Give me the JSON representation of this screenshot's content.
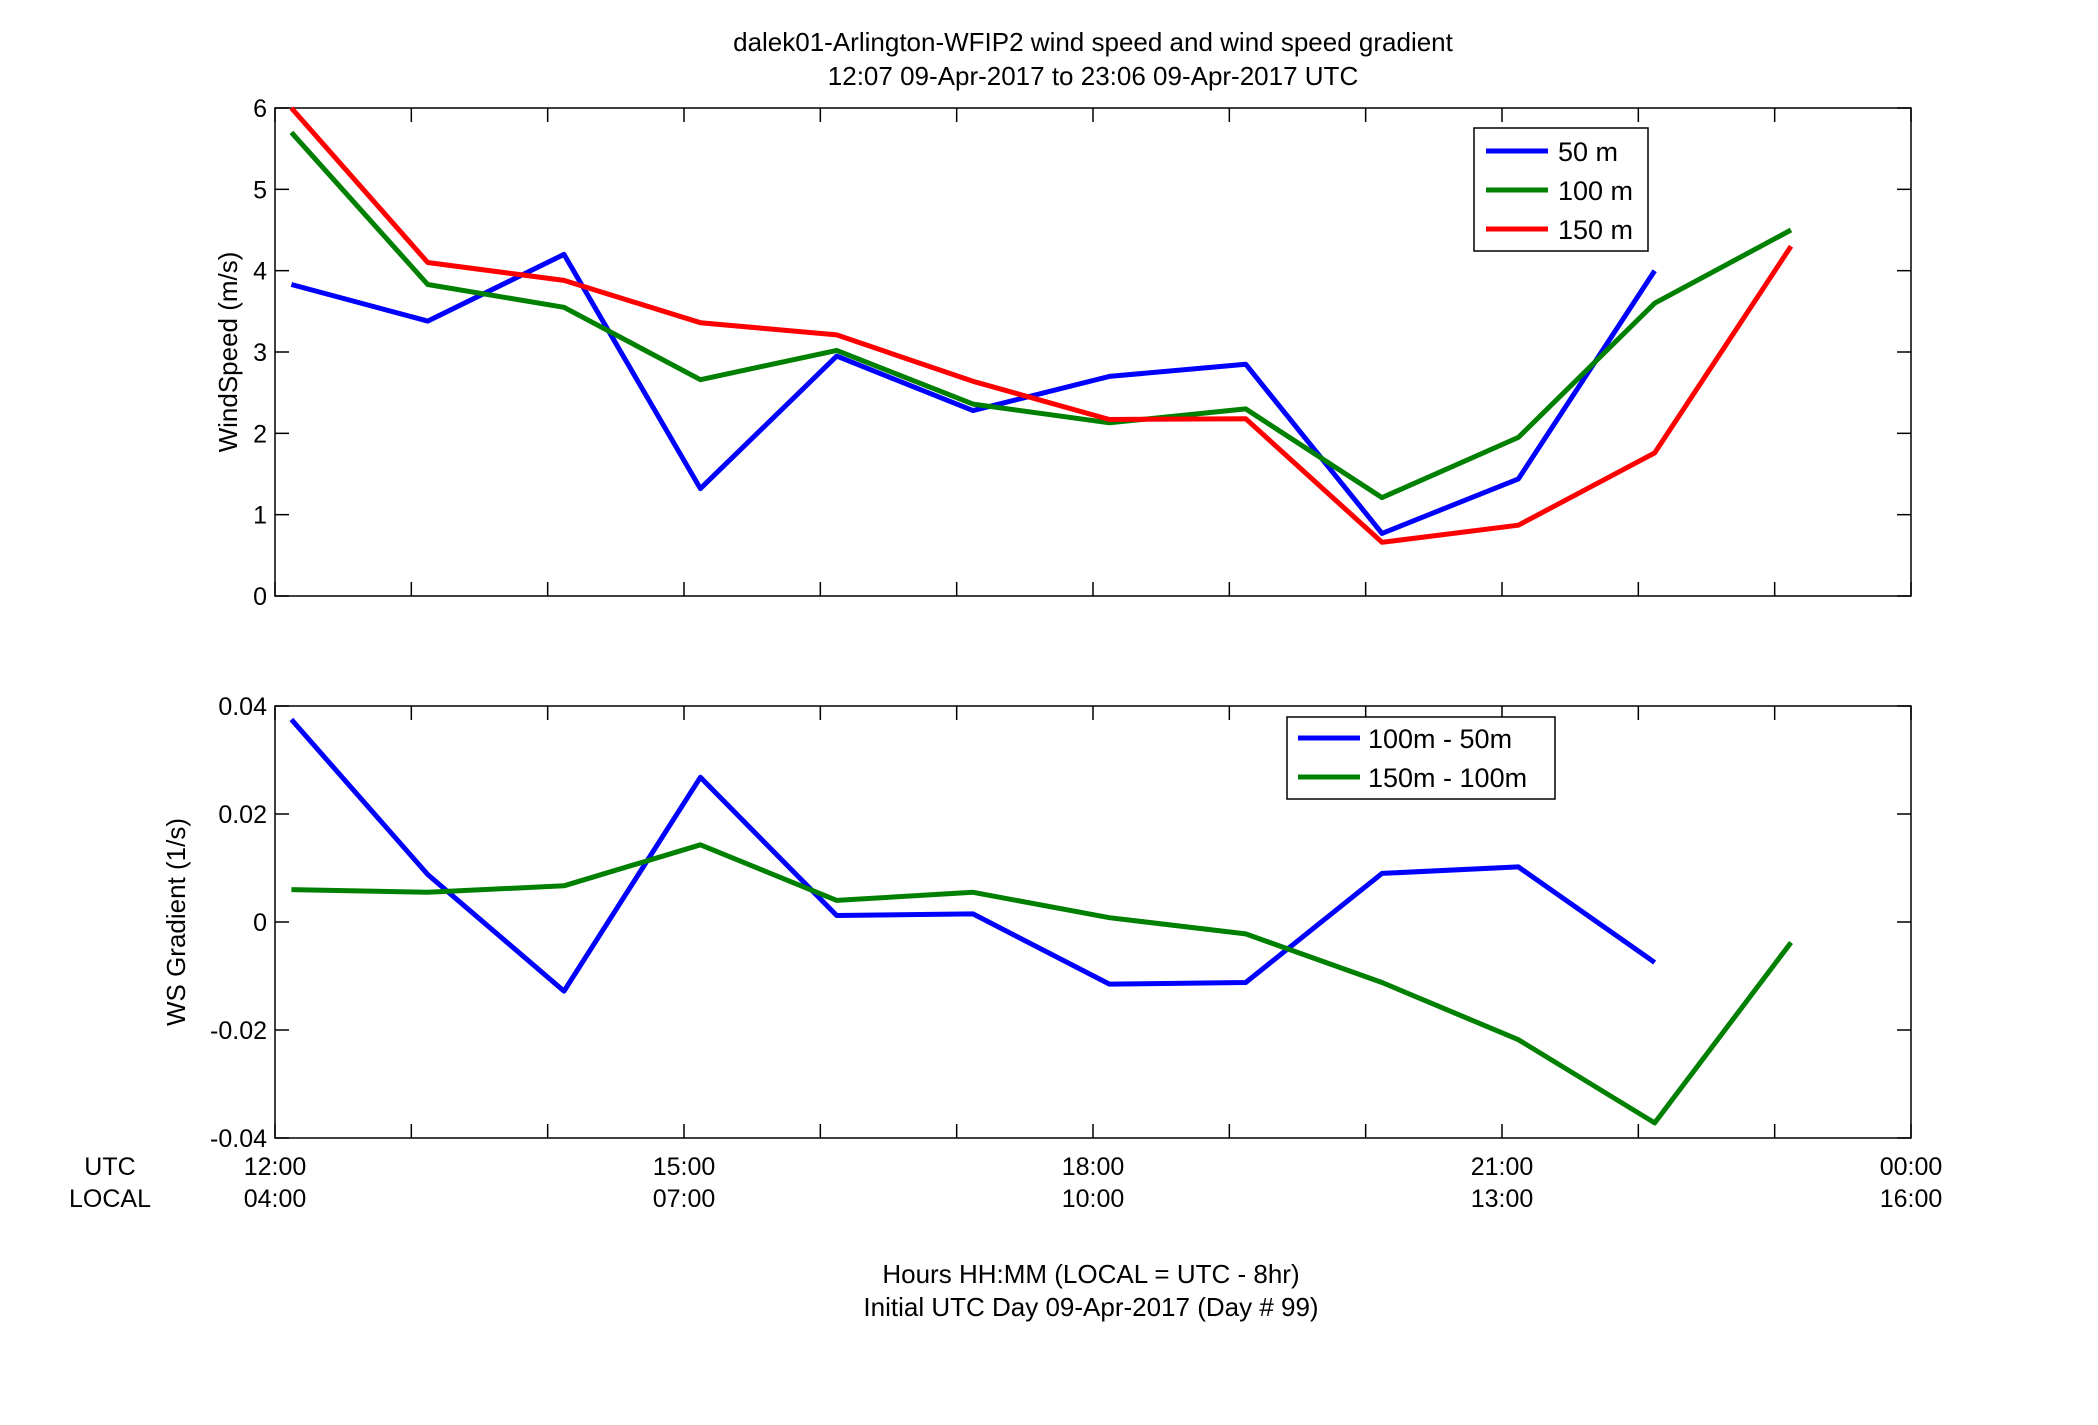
{
  "title": {
    "line1": "dalek01-Arlington-WFIP2  wind speed and wind speed gradient",
    "line2": "12:07 09-Apr-2017 to 23:06 09-Apr-2017  UTC"
  },
  "xaxis": {
    "row_label_utc": "UTC",
    "row_label_local": "LOCAL",
    "utc_ticks": [
      "12:00",
      "15:00",
      "18:00",
      "21:00",
      "00:00"
    ],
    "local_ticks": [
      "04:00",
      "07:00",
      "10:00",
      "13:00",
      "16:00"
    ],
    "xlabel_line1": "Hours HH:MM  (LOCAL = UTC - 8hr)",
    "xlabel_line2": "Initial UTC Day 09-Apr-2017 (Day # 99)"
  },
  "colors": {
    "blue": "#0000ff",
    "green": "#008000",
    "red": "#ff0000"
  },
  "chart_data": [
    {
      "type": "line",
      "ylabel": "WindSpeed (m/s)",
      "ylim": [
        0,
        6
      ],
      "yticks": [
        "0",
        "1",
        "2",
        "3",
        "4",
        "5",
        "6"
      ],
      "xlim_hours_utc": [
        12,
        24
      ],
      "grid": false,
      "legend_position": "top-right",
      "x_hours_utc": [
        12.12,
        13.12,
        14.12,
        15.12,
        16.12,
        17.12,
        18.12,
        19.12,
        20.12,
        21.12,
        22.12,
        23.12
      ],
      "series": [
        {
          "name": "50 m",
          "color": "#0000ff",
          "values": [
            3.83,
            3.38,
            4.2,
            1.32,
            2.95,
            2.28,
            2.7,
            2.85,
            0.77,
            1.44,
            4.0,
            null
          ]
        },
        {
          "name": "100 m",
          "color": "#008000",
          "values": [
            5.7,
            3.83,
            3.55,
            2.66,
            3.02,
            2.36,
            2.13,
            2.3,
            1.21,
            1.95,
            3.6,
            4.5
          ]
        },
        {
          "name": "150 m",
          "color": "#ff0000",
          "values": [
            6.0,
            4.1,
            3.88,
            3.36,
            3.21,
            2.64,
            2.17,
            2.18,
            0.66,
            0.87,
            1.76,
            4.3
          ]
        }
      ]
    },
    {
      "type": "line",
      "ylabel": "WS Gradient (1/s)",
      "ylim": [
        -0.04,
        0.04
      ],
      "yticks": [
        "-0.04",
        "-0.02",
        "0",
        "0.02",
        "0.04"
      ],
      "xlim_hours_utc": [
        12,
        24
      ],
      "grid": false,
      "legend_position": "top-right",
      "x_hours_utc": [
        12.12,
        13.12,
        14.12,
        15.12,
        16.12,
        17.12,
        18.12,
        19.12,
        20.12,
        21.12,
        22.12,
        23.12
      ],
      "series": [
        {
          "name": "100m - 50m",
          "color": "#0000ff",
          "values": [
            0.0375,
            0.0088,
            -0.0128,
            0.0268,
            0.0012,
            0.0015,
            -0.0115,
            -0.0112,
            0.009,
            0.0102,
            -0.0075,
            null
          ]
        },
        {
          "name": "150m - 100m",
          "color": "#008000",
          "values": [
            0.006,
            0.0055,
            0.0067,
            0.0143,
            0.004,
            0.0055,
            0.0008,
            -0.0022,
            -0.0112,
            -0.0218,
            -0.0372,
            -0.0038
          ]
        }
      ]
    }
  ]
}
